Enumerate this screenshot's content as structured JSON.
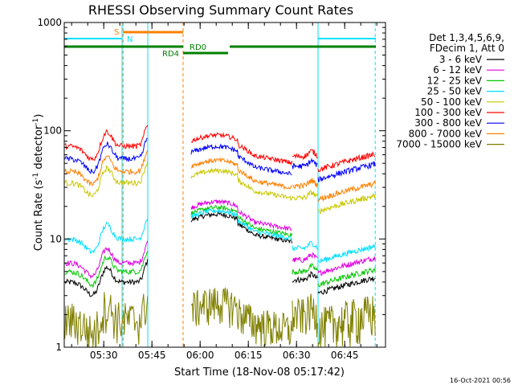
{
  "chart_data": {
    "type": "line",
    "title": "RHESSI Observing Summary Count Rates",
    "xlabel": "Start Time (18-Nov-08 05:17:42)",
    "ylabel_main": "Count Rate (s",
    "ylabel_sup1": "-1",
    "ylabel_mid": " detector",
    "ylabel_sup2": "-1",
    "ylabel_end": ")",
    "y_scale": "log",
    "ylim": [
      1,
      1000
    ],
    "xlim_minutes": [
      0,
      100
    ],
    "x_ticks": [
      {
        "min": 12.3,
        "label": "05:30"
      },
      {
        "min": 27.3,
        "label": "05:45"
      },
      {
        "min": 42.3,
        "label": "06:00"
      },
      {
        "min": 57.3,
        "label": "06:15"
      },
      {
        "min": 72.3,
        "label": "06:30"
      },
      {
        "min": 87.3,
        "label": "06:45"
      }
    ],
    "y_ticks": [
      {
        "value": 1,
        "label": "1"
      },
      {
        "value": 10,
        "label": "10"
      },
      {
        "value": 100,
        "label": "100"
      },
      {
        "value": 1000,
        "label": "1000"
      }
    ],
    "legend_header": [
      "Det 1,3,4,5,6,9,",
      "FDecim 1, Att 0"
    ],
    "legend_placement": "right",
    "series": [
      {
        "name": "3 - 6 keV",
        "color": "#000000",
        "a": 4,
        "b": 20,
        "c": 13,
        "d": 4.2
      },
      {
        "name": "6 - 12 keV",
        "color": "#e000e0",
        "a": 6,
        "b": 22,
        "c": 17,
        "d": 6.4
      },
      {
        "name": "12 - 25 keV",
        "color": "#00c800",
        "a": 5,
        "b": 20,
        "c": 15,
        "d": 5.0
      },
      {
        "name": "25 - 50 keV",
        "color": "#00e0ff",
        "a": 10,
        "b": 18,
        "c": 14,
        "d": 8.2
      },
      {
        "name": "50 - 100 keV",
        "color": "#c8c800",
        "a": 33,
        "b": 30,
        "c": 33,
        "d": 24
      },
      {
        "name": "100 - 300 keV",
        "color": "#ff0000",
        "a": 72,
        "b": 65,
        "c": 70,
        "d": 58
      },
      {
        "name": "300 - 800 keV",
        "color": "#0000ff",
        "a": 55,
        "b": 60,
        "c": 55,
        "d": 47
      },
      {
        "name": "800 - 7000 keV",
        "color": "#ff8000",
        "a": 42,
        "b": 48,
        "c": 41,
        "d": 31
      },
      {
        "name": "7000 - 15000 keV",
        "color": "#808000",
        "a": 1.8,
        "b": 3.2,
        "c": 2.0,
        "d": 2.0
      }
    ],
    "attenuator_markers": [
      {
        "label": "S",
        "color": "#ff8000"
      },
      {
        "label": "N",
        "color": "#00e0ff"
      },
      {
        "label": "RD0",
        "color": "#008000"
      },
      {
        "label": "RD4",
        "color": "#008000"
      }
    ],
    "timestamp": "16-Oct-2021 00:56"
  }
}
